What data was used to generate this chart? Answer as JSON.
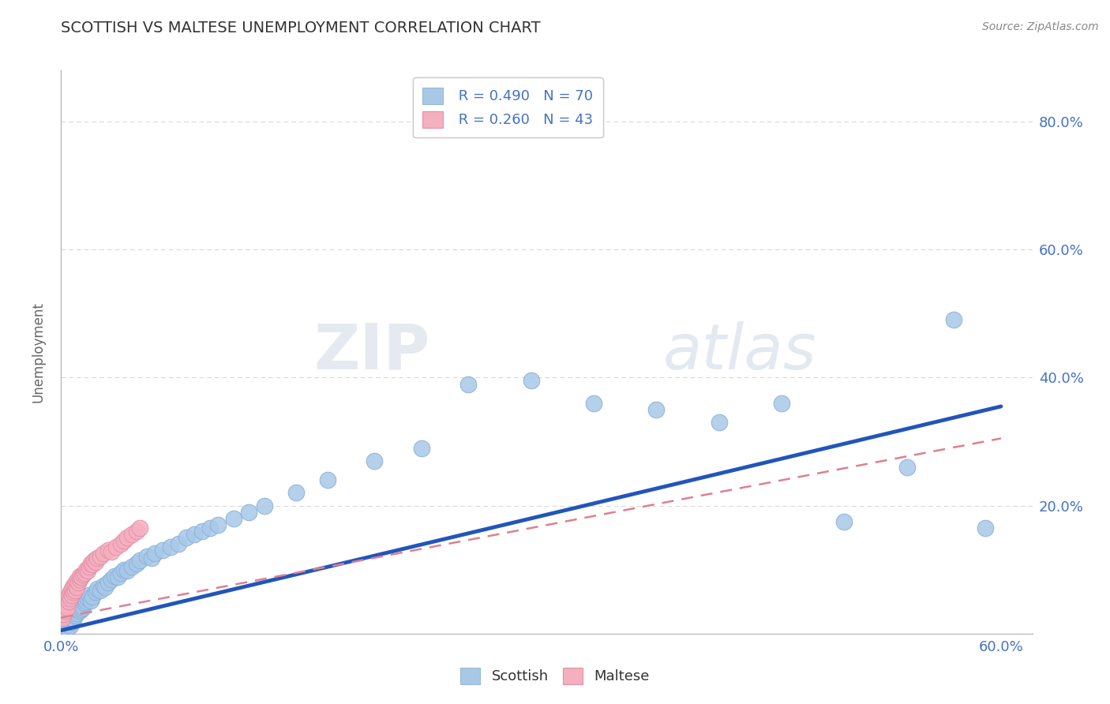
{
  "title": "SCOTTISH VS MALTESE UNEMPLOYMENT CORRELATION CHART",
  "source": "Source: ZipAtlas.com",
  "ylabel": "Unemployment",
  "xlim": [
    0.0,
    0.62
  ],
  "ylim": [
    0.0,
    0.88
  ],
  "xticks": [
    0.0,
    0.1,
    0.2,
    0.3,
    0.4,
    0.5,
    0.6
  ],
  "xticklabels": [
    "0.0%",
    "",
    "",
    "",
    "",
    "",
    "60.0%"
  ],
  "ytick_positions": [
    0.0,
    0.2,
    0.4,
    0.6,
    0.8
  ],
  "yticklabels_right": [
    "",
    "20.0%",
    "40.0%",
    "60.0%",
    "80.0%"
  ],
  "legend_R1": "R = 0.490",
  "legend_N1": "N = 70",
  "legend_R2": "R = 0.260",
  "legend_N2": "N = 43",
  "legend_label1": "Scottish",
  "legend_label2": "Maltese",
  "scottish_color": "#a8c8e8",
  "maltese_color": "#f5b0c0",
  "trendline1_color": "#2255bb",
  "trendline2_color": "#dd8090",
  "background_color": "#ffffff",
  "grid_color": "#cccccc",
  "accent_color": "#4472c4",
  "scottish_x": [
    0.002,
    0.003,
    0.004,
    0.005,
    0.005,
    0.006,
    0.007,
    0.007,
    0.008,
    0.008,
    0.009,
    0.009,
    0.01,
    0.01,
    0.011,
    0.012,
    0.012,
    0.013,
    0.013,
    0.014,
    0.015,
    0.015,
    0.016,
    0.017,
    0.018,
    0.019,
    0.02,
    0.022,
    0.023,
    0.025,
    0.027,
    0.028,
    0.03,
    0.032,
    0.034,
    0.036,
    0.038,
    0.04,
    0.042,
    0.045,
    0.048,
    0.05,
    0.055,
    0.058,
    0.06,
    0.065,
    0.07,
    0.075,
    0.08,
    0.085,
    0.09,
    0.095,
    0.1,
    0.11,
    0.12,
    0.13,
    0.15,
    0.17,
    0.2,
    0.23,
    0.26,
    0.3,
    0.34,
    0.38,
    0.42,
    0.46,
    0.5,
    0.54,
    0.57,
    0.59
  ],
  "scottish_y": [
    0.005,
    0.01,
    0.008,
    0.015,
    0.02,
    0.012,
    0.018,
    0.025,
    0.022,
    0.03,
    0.028,
    0.035,
    0.032,
    0.038,
    0.04,
    0.035,
    0.042,
    0.038,
    0.045,
    0.04,
    0.048,
    0.055,
    0.05,
    0.055,
    0.06,
    0.052,
    0.058,
    0.065,
    0.07,
    0.068,
    0.075,
    0.072,
    0.08,
    0.085,
    0.09,
    0.088,
    0.095,
    0.1,
    0.098,
    0.105,
    0.11,
    0.115,
    0.12,
    0.118,
    0.125,
    0.13,
    0.135,
    0.14,
    0.15,
    0.155,
    0.16,
    0.165,
    0.17,
    0.18,
    0.19,
    0.2,
    0.22,
    0.24,
    0.27,
    0.29,
    0.39,
    0.395,
    0.36,
    0.35,
    0.33,
    0.36,
    0.175,
    0.26,
    0.49,
    0.165
  ],
  "maltese_x": [
    0.001,
    0.002,
    0.003,
    0.003,
    0.004,
    0.004,
    0.005,
    0.005,
    0.006,
    0.006,
    0.007,
    0.007,
    0.008,
    0.008,
    0.009,
    0.009,
    0.01,
    0.01,
    0.011,
    0.012,
    0.012,
    0.013,
    0.014,
    0.015,
    0.016,
    0.017,
    0.018,
    0.019,
    0.02,
    0.021,
    0.022,
    0.023,
    0.025,
    0.027,
    0.03,
    0.032,
    0.035,
    0.038,
    0.04,
    0.042,
    0.045,
    0.048,
    0.05
  ],
  "maltese_y": [
    0.025,
    0.03,
    0.035,
    0.045,
    0.04,
    0.055,
    0.05,
    0.06,
    0.055,
    0.065,
    0.06,
    0.07,
    0.065,
    0.075,
    0.068,
    0.078,
    0.072,
    0.082,
    0.08,
    0.085,
    0.09,
    0.088,
    0.092,
    0.095,
    0.1,
    0.098,
    0.105,
    0.11,
    0.108,
    0.115,
    0.112,
    0.118,
    0.12,
    0.125,
    0.13,
    0.128,
    0.135,
    0.14,
    0.145,
    0.15,
    0.155,
    0.16,
    0.165
  ],
  "trendline1_x": [
    0.0,
    0.6
  ],
  "trendline1_y": [
    0.005,
    0.355
  ],
  "trendline2_x": [
    0.0,
    0.6
  ],
  "trendline2_y": [
    0.025,
    0.305
  ]
}
